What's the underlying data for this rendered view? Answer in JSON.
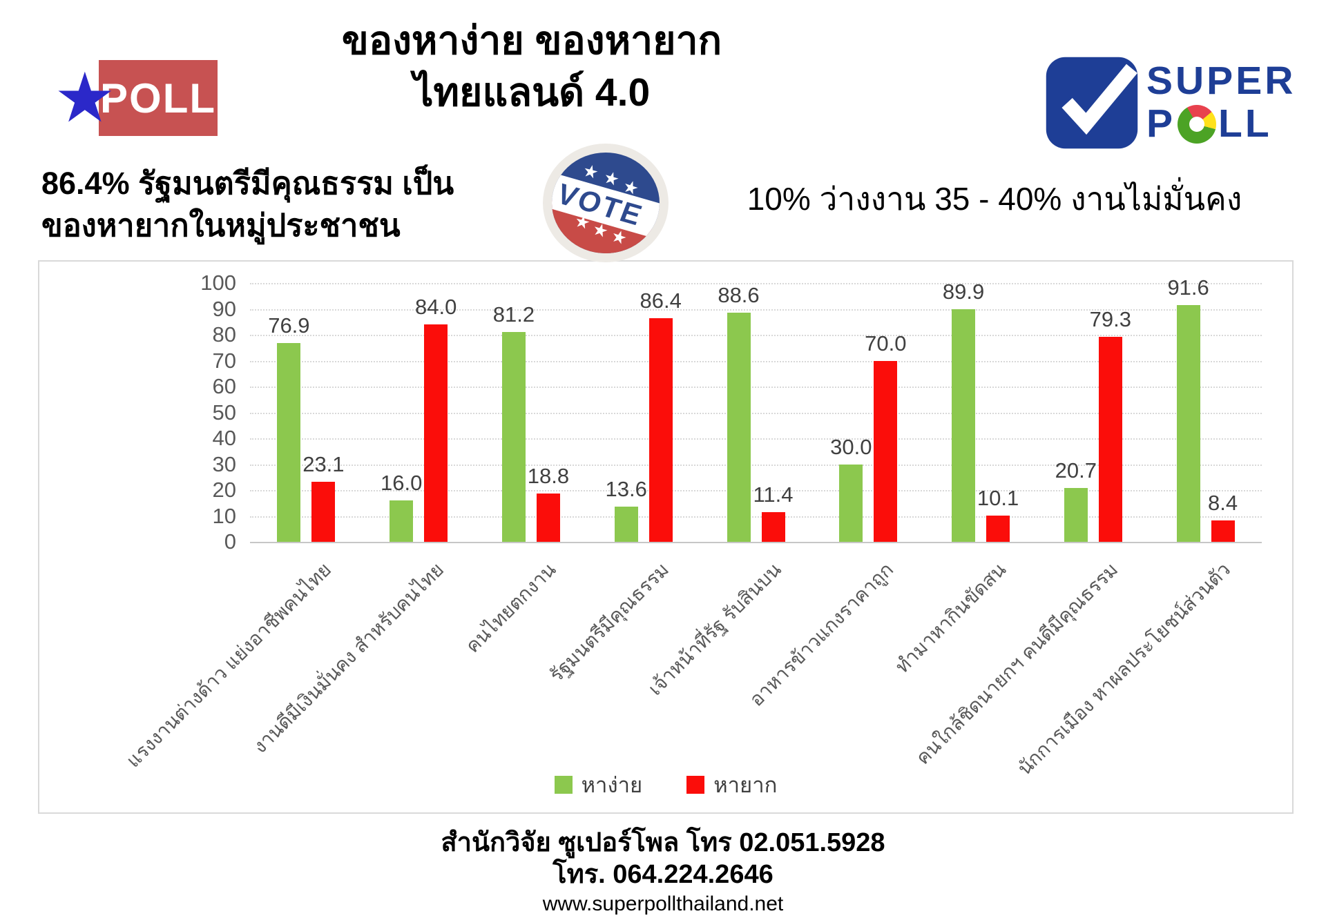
{
  "page": {
    "title_line1": "ของหาง่าย ของหายาก",
    "title_line2": "ไทยแลนด์ 4.0"
  },
  "poll_logo": {
    "text": "POLL",
    "star": "★",
    "box_color": "#C75252",
    "star_color": "#2B28C9"
  },
  "superpoll_logo": {
    "super": "SUPER",
    "p": "P",
    "ll": "LL",
    "navy": "#1E3E96",
    "donut_green": "#4CA325",
    "donut_red": "#E8414D",
    "donut_yellow": "#FFE11A"
  },
  "stats": {
    "left_line1": "86.4% รัฐมนตรีมีคุณธรรม เป็น",
    "left_line2": "ของหายากในหมู่ประชาชน",
    "right": "10% ว่างงาน 35 - 40% งานไม่มั่นคง"
  },
  "vote_badge": {
    "label": "VOTE",
    "star": "★",
    "blue": "#2E4A8E",
    "red": "#C84B47"
  },
  "chart_data": {
    "type": "bar",
    "categories": [
      "แรงงานต่างด้าว แย่งอาชีพคนไทย",
      "งานดีมีเงินมั่นคง สำหรับคนไทย",
      "คนไทยตกงาน",
      "รัฐมนตรีมีคุณธรรม",
      "เจ้าหน้าที่รัฐ รับสินบน",
      "อาหารข้าวแกงราคาถูก",
      "ทำมาหากินขัดสน",
      "คนใกล้ชิดนายกฯ คนดีมีคุณธรรม",
      "นักการเมือง หาผลประโยชน์ส่วนตัว"
    ],
    "series": [
      {
        "name": "หาง่าย",
        "color": "#8CC84E",
        "values": [
          76.9,
          16.0,
          81.2,
          13.6,
          88.6,
          30.0,
          89.9,
          20.7,
          91.6
        ]
      },
      {
        "name": "หายาก",
        "color": "#FB0D0A",
        "values": [
          23.1,
          84.0,
          18.8,
          86.4,
          11.4,
          70.0,
          10.1,
          79.3,
          8.4
        ]
      }
    ],
    "ylim": [
      0,
      100
    ],
    "yticks": [
      0,
      10,
      20,
      30,
      40,
      50,
      60,
      70,
      80,
      90,
      100
    ],
    "grid": true,
    "legend_position": "bottom",
    "value_labels": true,
    "value_label_decimals": 1
  },
  "footer": {
    "line1": "สำนักวิจัย ซูเปอร์โพล โทร 02.051.5928",
    "line2": "โทร. 064.224.2646",
    "line3": "www.superpollthailand.net"
  }
}
